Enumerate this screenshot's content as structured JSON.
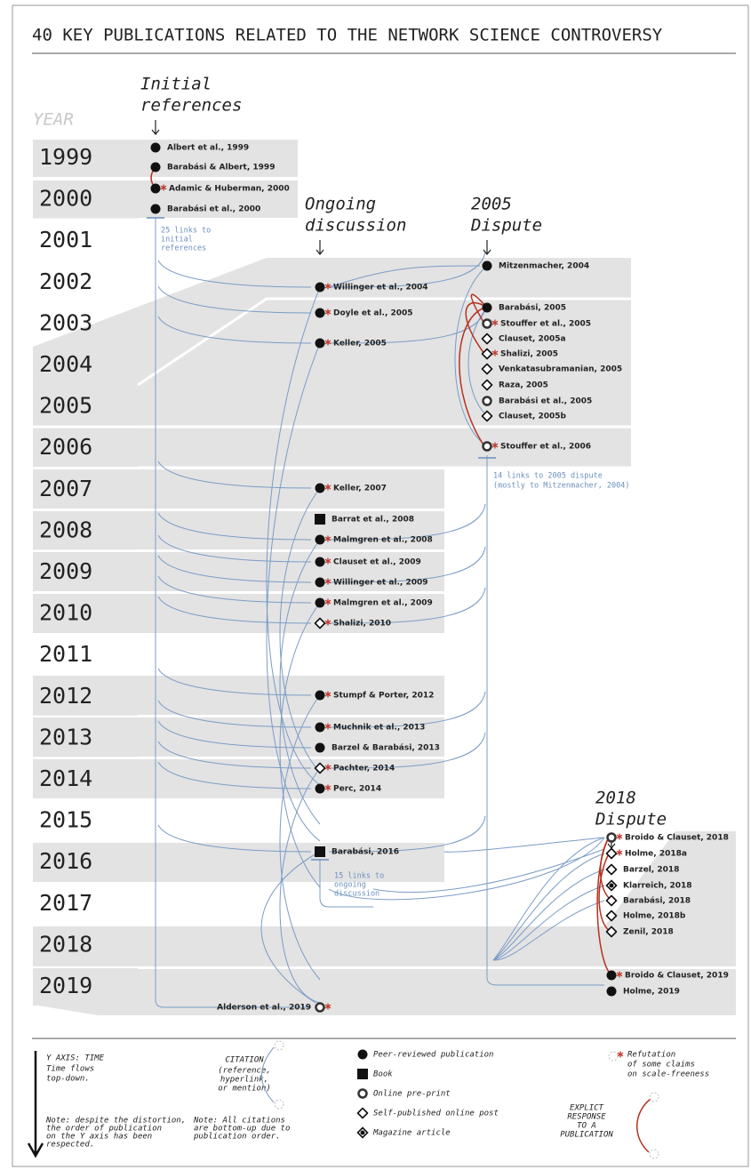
{
  "title": "40 KEY PUBLICATIONS RELATED TO THE NETWORK SCIENCE CONTROVERSY",
  "year_header": "YEAR",
  "years": [
    "1999",
    "2000",
    "2001",
    "2002",
    "2003",
    "2004",
    "2005",
    "2006",
    "2007",
    "2008",
    "2009",
    "2010",
    "2011",
    "2012",
    "2013",
    "2014",
    "2015",
    "2016",
    "2017",
    "2018",
    "2019"
  ],
  "sections": [
    {
      "heading": [
        "Initial",
        "references"
      ],
      "nodes": [
        {
          "label": "Albert et al., 1999",
          "type": "peer"
        },
        {
          "label": "Barabási & Albert, 1999",
          "type": "peer"
        },
        {
          "label": "Adamic & Huberman, 2000",
          "type": "peer",
          "refutation": true
        },
        {
          "label": "Barabási et al., 2000",
          "type": "peer"
        }
      ]
    },
    {
      "heading": [
        "Ongoing",
        "discussion"
      ],
      "nodes": [
        {
          "label": "Willinger et al., 2004",
          "type": "peer",
          "refutation": true
        },
        {
          "label": "Doyle et al., 2005",
          "type": "peer",
          "refutation": true
        },
        {
          "label": "Keller, 2005",
          "type": "peer",
          "refutation": true
        },
        {
          "label": "Keller, 2007",
          "type": "peer",
          "refutation": true
        },
        {
          "label": "Barrat et al., 2008",
          "type": "book"
        },
        {
          "label": "Malmgren et al., 2008",
          "type": "peer",
          "refutation": true
        },
        {
          "label": "Clauset et al., 2009",
          "type": "peer",
          "refutation": true
        },
        {
          "label": "Willinger et al., 2009",
          "type": "peer",
          "refutation": true
        },
        {
          "label": "Malmgren et al., 2009",
          "type": "peer",
          "refutation": true
        },
        {
          "label": "Shalizi, 2010",
          "type": "selfpub",
          "refutation": true
        },
        {
          "label": "Stumpf & Porter, 2012",
          "type": "peer",
          "refutation": true
        },
        {
          "label": "Muchnik et al., 2013",
          "type": "peer",
          "refutation": true
        },
        {
          "label": "Barzel & Barabási, 2013",
          "type": "peer"
        },
        {
          "label": "Pachter, 2014",
          "type": "selfpub",
          "refutation": true
        },
        {
          "label": "Perc, 2014",
          "type": "peer",
          "refutation": true
        },
        {
          "label": "Barabási, 2016",
          "type": "book"
        },
        {
          "label": "Alderson et al., 2019",
          "type": "preprint",
          "refutation": true
        }
      ]
    },
    {
      "heading": [
        "2005",
        "Dispute"
      ],
      "nodes": [
        {
          "label": "Mitzenmacher, 2004",
          "type": "peer"
        },
        {
          "label": "Barabási, 2005",
          "type": "peer"
        },
        {
          "label": "Stouffer et al., 2005",
          "type": "preprint",
          "refutation": true
        },
        {
          "label": "Clauset, 2005a",
          "type": "selfpub"
        },
        {
          "label": "Shalizi, 2005",
          "type": "selfpub",
          "refutation": true
        },
        {
          "label": "Venkatasubramanian, 2005",
          "type": "selfpub"
        },
        {
          "label": "Raza, 2005",
          "type": "selfpub"
        },
        {
          "label": "Barabási et al., 2005",
          "type": "preprint"
        },
        {
          "label": "Clauset, 2005b",
          "type": "selfpub"
        },
        {
          "label": "Stouffer et al., 2006",
          "type": "preprint",
          "refutation": true
        }
      ]
    },
    {
      "heading": [
        "2018",
        "Dispute"
      ],
      "nodes": [
        {
          "label": "Broido & Clauset, 2018",
          "type": "preprint",
          "refutation": true
        },
        {
          "label": "Holme, 2018a",
          "type": "selfpub",
          "refutation": true
        },
        {
          "label": "Barzel, 2018",
          "type": "selfpub"
        },
        {
          "label": "Klarreich, 2018",
          "type": "magazine"
        },
        {
          "label": "Barabási, 2018",
          "type": "selfpub"
        },
        {
          "label": "Holme, 2018b",
          "type": "selfpub"
        },
        {
          "label": "Zenil, 2018",
          "type": "selfpub"
        },
        {
          "label": "Broido & Clauset, 2019",
          "type": "peer",
          "refutation": true
        },
        {
          "label": "Holme, 2019",
          "type": "peer"
        }
      ]
    }
  ],
  "annotations": [
    [
      "25 links to",
      "initial",
      "references"
    ],
    [
      "14 links to 2005 dispute",
      "(mostly to Mitzenmacher, 2004)"
    ],
    [
      "15 links to",
      "ongoing",
      "discussion"
    ]
  ],
  "legend": {
    "axis_title": "Y AXIS: TIME",
    "axis_text": [
      "Time flows",
      "top-down."
    ],
    "axis_note": [
      "Note: despite the distortion,",
      "the order of publication",
      "on the Y axis has been",
      "respected."
    ],
    "citation_title": "CITATION",
    "citation_text": [
      "(reference,",
      "hyperlink,",
      "or mention)"
    ],
    "citation_note": [
      "Note: All citations",
      "are bottom-up due to",
      "publication order."
    ],
    "markers": [
      {
        "type": "peer",
        "label": "Peer-reviewed publication"
      },
      {
        "type": "book",
        "label": "Book"
      },
      {
        "type": "preprint",
        "label": "Online pre-print"
      },
      {
        "type": "selfpub",
        "label": "Self-published online post"
      },
      {
        "type": "magazine",
        "label": "Magazine article"
      }
    ],
    "refutation": [
      "Refutation",
      "of some claims",
      "on scale-freeness"
    ],
    "response": [
      "EXPLICT",
      "RESPONSE",
      "TO A",
      "PUBLICATION"
    ]
  }
}
